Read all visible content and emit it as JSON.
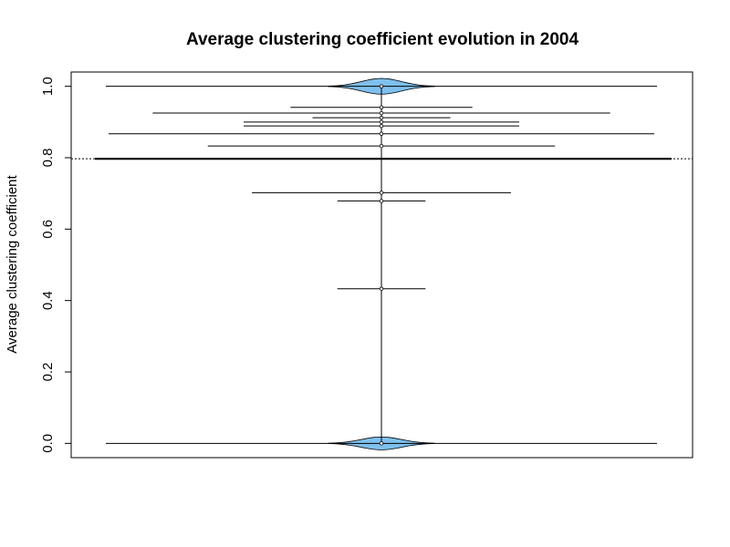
{
  "chart_data": {
    "type": "beanplot",
    "title": "Average clustering coefficient evolution in 2004",
    "xlabel": "",
    "ylabel": "Average clustering coefficient",
    "ylim": [
      -0.04,
      1.04
    ],
    "yticks": [
      0.0,
      0.2,
      0.4,
      0.6,
      0.8,
      1.0
    ],
    "ytick_labels": [
      "0.0",
      "0.2",
      "0.4",
      "0.6",
      "0.8",
      "1.0"
    ],
    "grid": false,
    "overall_mean": 0.797,
    "group_mean": 0.797,
    "bean_color": "#7ec0ee",
    "points": [
      {
        "value": 1.0,
        "weight": 1.0
      },
      {
        "value": 0.941,
        "weight": 0.33
      },
      {
        "value": 0.925,
        "weight": 0.83
      },
      {
        "value": 0.912,
        "weight": 0.25
      },
      {
        "value": 0.9,
        "weight": 0.5
      },
      {
        "value": 0.889,
        "weight": 0.5
      },
      {
        "value": 0.867,
        "weight": 0.99
      },
      {
        "value": 0.833,
        "weight": 0.63
      },
      {
        "value": 0.702,
        "weight": 0.47
      },
      {
        "value": 0.679,
        "weight": 0.16
      },
      {
        "value": 0.433,
        "weight": 0.16
      },
      {
        "value": 0.0,
        "weight": 1.0
      }
    ],
    "density_peaks": [
      {
        "value": 1.0,
        "height": 0.022
      },
      {
        "value": 0.0,
        "height": 0.018
      }
    ]
  }
}
